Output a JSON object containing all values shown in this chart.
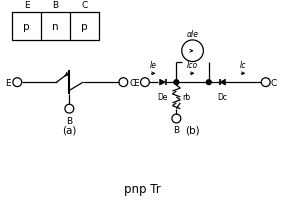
{
  "title": "pnp Tr",
  "label_a": "(a)",
  "label_b": "(b)",
  "bg_color": "#ffffff",
  "line_color": "#000000",
  "table_labels_top": [
    "E",
    "B",
    "C"
  ],
  "table_labels_mid": [
    "p",
    "n",
    "p"
  ],
  "alpha_Ie_label": "αIe",
  "Ie_label": "Ie",
  "Ico_label": "Ico",
  "Ic_label": "Ic",
  "De_label": "De",
  "Dc_label": "Dc",
  "rb_label": "rb",
  "E_label": "E",
  "C_label": "C",
  "B_label": "B"
}
